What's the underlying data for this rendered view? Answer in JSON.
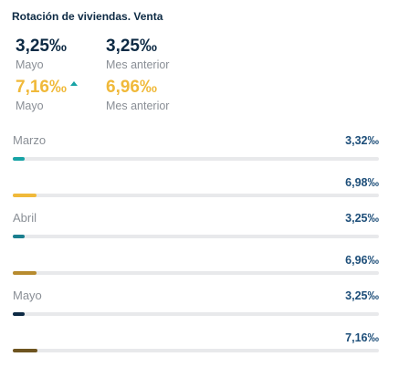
{
  "header": {
    "title": "Rotación de viviendas. Venta"
  },
  "stats": [
    {
      "value": "3,25‰",
      "label": "Mayo",
      "color": "#0d2a44"
    },
    {
      "value": "3,25‰",
      "label": "Mes anterior",
      "color": "#0d2a44"
    },
    {
      "value": "7,16‰",
      "label": "Mayo",
      "color": "#f0b93a",
      "trend_icon": "triangle-up-icon",
      "trend_color": "#17a3a5"
    },
    {
      "value": "6,96‰",
      "label": "Mes anterior",
      "color": "#f0b93a"
    }
  ],
  "months": [
    {
      "label": "Marzo",
      "rows": [
        {
          "value": "3,32‰",
          "fill_fraction": 0.033,
          "color": "#17a3a5"
        },
        {
          "value": "6,98‰",
          "fill_fraction": 0.066,
          "color": "#f0b93a"
        }
      ]
    },
    {
      "label": "Abril",
      "rows": [
        {
          "value": "3,25‰",
          "fill_fraction": 0.032,
          "color": "#1b7f8f"
        },
        {
          "value": "6,96‰",
          "fill_fraction": 0.066,
          "color": "#b78b2e"
        }
      ]
    },
    {
      "label": "Mayo",
      "rows": [
        {
          "value": "3,25‰",
          "fill_fraction": 0.032,
          "color": "#0d2a44"
        },
        {
          "value": "7,16‰",
          "fill_fraction": 0.068,
          "color": "#6e5420"
        }
      ]
    }
  ]
}
